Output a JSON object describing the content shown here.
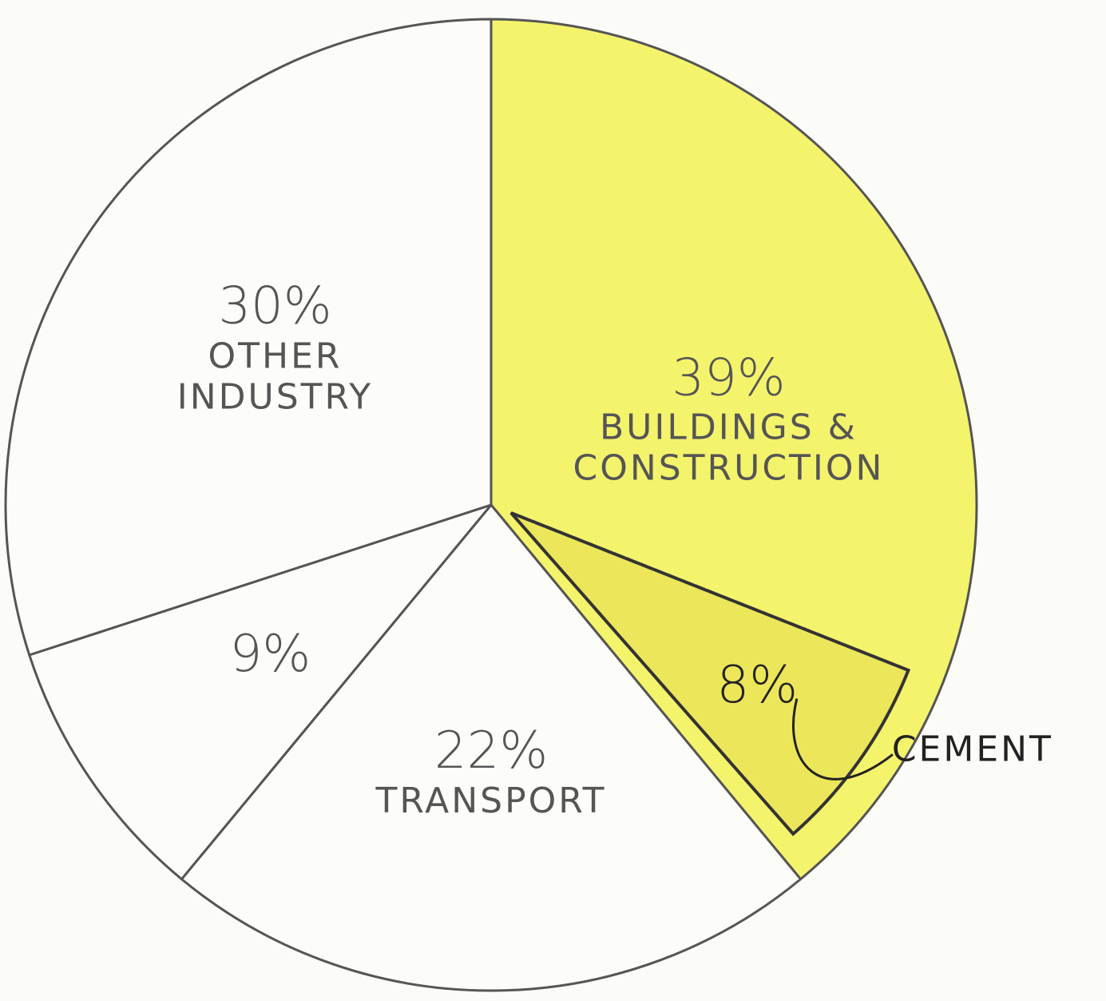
{
  "chart_data": {
    "type": "pie",
    "categories": [
      "BUILDINGS & CONSTRUCTION",
      "TRANSPORT",
      null,
      "OTHER INDUSTRY"
    ],
    "values": [
      39,
      22,
      9,
      30
    ],
    "value_labels": [
      "39%",
      "22%",
      "9%",
      "30%"
    ],
    "colors": [
      "#f4f36c",
      "#fcfcf9",
      "#fcfcf9",
      "#fcfcf9"
    ],
    "inset": {
      "name": "CEMENT",
      "value": 8,
      "label": "8%",
      "color": "#ece65a"
    }
  }
}
